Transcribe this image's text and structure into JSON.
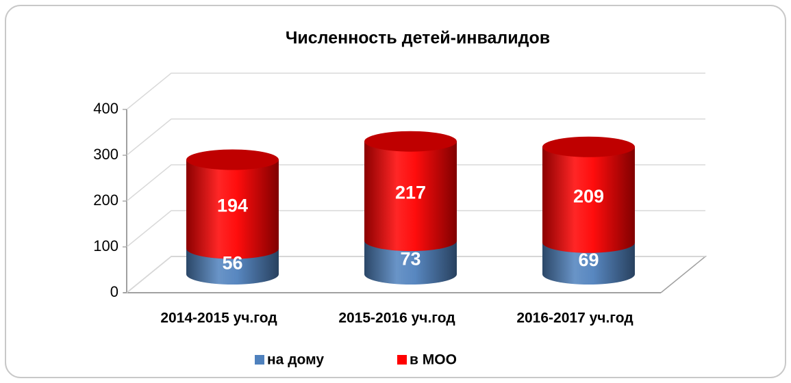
{
  "chart_data": {
    "type": "stacked-cylinder",
    "title": "Численность детей-инвалидов",
    "categories": [
      "2014-2015 уч.год",
      "2015-2016 уч.год",
      "2016-2017 уч.год"
    ],
    "series": [
      {
        "name": "на дому",
        "color": "#4f81bd",
        "values": [
          56,
          73,
          69
        ]
      },
      {
        "name": "в МОО",
        "color": "#ff0000",
        "values": [
          194,
          217,
          209
        ]
      }
    ],
    "ylim": [
      0,
      400
    ],
    "yticks": [
      0,
      100,
      200,
      300,
      400
    ],
    "grid": true,
    "legend": "bottom"
  }
}
